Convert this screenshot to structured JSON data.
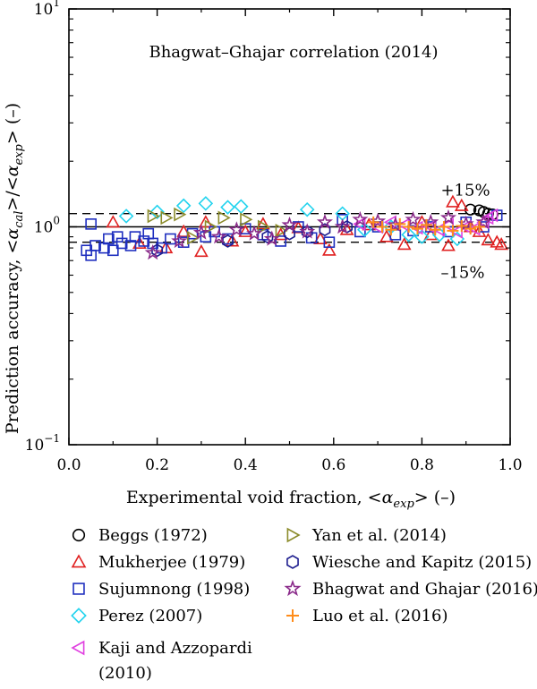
{
  "chart_data": {
    "type": "scatter",
    "title": "Bhagwat–Ghajar correlation (2014)",
    "xlabel": "Experimental void fraction, <α_exp> (–)",
    "ylabel": "Prediction accuracy, <α_cal>/<α_exp> (–)",
    "xlim": [
      0.0,
      1.0
    ],
    "ylim": [
      0.1,
      10
    ],
    "y_scale": "log",
    "x_ticks": [
      "0.0",
      "0.2",
      "0.4",
      "0.6",
      "0.8",
      "1.0"
    ],
    "y_ticks": [
      {
        "base": "10",
        "exp": "−1",
        "value": 0.1
      },
      {
        "base": "10",
        "exp": "0",
        "value": 1
      },
      {
        "base": "10",
        "exp": "1",
        "value": 10
      }
    ],
    "reference_lines": [
      {
        "label": "+15%",
        "value": 1.15,
        "style": "dashed"
      },
      {
        "label": "",
        "value": 1.0,
        "style": "solid"
      },
      {
        "label": "–15%",
        "value": 0.85,
        "style": "dashed"
      }
    ],
    "legend_placement": "below",
    "series": [
      {
        "name": "Beggs (1972)",
        "marker": "circle",
        "color": "#000000",
        "x": [
          0.91,
          0.93,
          0.94,
          0.95,
          0.96
        ],
        "y": [
          1.2,
          1.19,
          1.17,
          1.15,
          1.14
        ]
      },
      {
        "name": "Mukherjee (1979)",
        "marker": "triangle-up",
        "color": "#e02020",
        "x": [
          0.1,
          0.16,
          0.22,
          0.26,
          0.3,
          0.31,
          0.37,
          0.4,
          0.44,
          0.48,
          0.52,
          0.57,
          0.59,
          0.63,
          0.68,
          0.72,
          0.76,
          0.8,
          0.82,
          0.86,
          0.87,
          0.89,
          0.91,
          0.93,
          0.95,
          0.97,
          0.98
        ],
        "y": [
          1.05,
          0.84,
          0.8,
          0.95,
          0.77,
          1.05,
          0.86,
          0.95,
          1.03,
          0.92,
          0.99,
          0.88,
          0.78,
          0.97,
          1.02,
          0.9,
          0.83,
          1.05,
          0.92,
          0.82,
          1.3,
          1.25,
          1.0,
          0.95,
          0.87,
          0.85,
          0.83
        ]
      },
      {
        "name": "Sujumnong (1998)",
        "marker": "square",
        "color": "#1f2fbf",
        "x": [
          0.04,
          0.05,
          0.05,
          0.06,
          0.08,
          0.09,
          0.1,
          0.11,
          0.12,
          0.14,
          0.15,
          0.17,
          0.18,
          0.19,
          0.21,
          0.23,
          0.26,
          0.28,
          0.31,
          0.33,
          0.36,
          0.4,
          0.44,
          0.48,
          0.52,
          0.55,
          0.59,
          0.62,
          0.66,
          0.7,
          0.74,
          0.78,
          0.82,
          0.86,
          0.9,
          0.94,
          0.97
        ],
        "y": [
          0.78,
          1.03,
          0.74,
          0.82,
          0.8,
          0.88,
          0.78,
          0.9,
          0.84,
          0.82,
          0.9,
          0.86,
          0.93,
          0.84,
          0.8,
          0.88,
          0.85,
          0.93,
          0.9,
          0.95,
          0.88,
          0.98,
          0.92,
          0.86,
          1.0,
          0.89,
          0.85,
          1.08,
          0.95,
          1.0,
          0.92,
          0.96,
          1.0,
          0.95,
          1.05,
          1.0,
          1.13
        ]
      },
      {
        "name": "Perez (2007)",
        "marker": "diamond",
        "color": "#22d3ee",
        "x": [
          0.13,
          0.2,
          0.26,
          0.31,
          0.36,
          0.39,
          0.54,
          0.62,
          0.67,
          0.73,
          0.77,
          0.8,
          0.84,
          0.88
        ],
        "y": [
          1.12,
          1.17,
          1.25,
          1.28,
          1.23,
          1.24,
          1.2,
          1.15,
          0.97,
          1.0,
          0.92,
          0.9,
          0.92,
          0.88
        ]
      },
      {
        "name": "Kaji and Azzopardi (2010)",
        "marker": "triangle-left",
        "color": "#e040e0",
        "x": [
          0.66,
          0.7,
          0.73,
          0.76,
          0.79,
          0.82,
          0.84,
          0.86,
          0.88,
          0.9,
          0.92,
          0.94,
          0.95,
          0.96
        ],
        "y": [
          1.03,
          1.0,
          1.05,
          1.02,
          0.99,
          1.0,
          0.97,
          1.02,
          0.95,
          1.0,
          0.98,
          1.05,
          1.1,
          1.13
        ]
      },
      {
        "name": "Yan et al. (2014)",
        "marker": "triangle-right",
        "color": "#8b8b2a",
        "x": [
          0.19,
          0.22,
          0.25,
          0.28,
          0.32,
          0.35,
          0.4,
          0.44,
          0.48
        ],
        "y": [
          1.12,
          1.1,
          1.14,
          0.89,
          1.0,
          1.1,
          1.08,
          1.0,
          0.96
        ]
      },
      {
        "name": "Wiesche and Kapitz (2015)",
        "marker": "hexagon",
        "color": "#1e1e8f",
        "x": [
          0.2,
          0.36,
          0.45,
          0.5,
          0.54,
          0.58,
          0.63
        ],
        "y": [
          0.78,
          0.86,
          0.9,
          0.93,
          0.95,
          0.97,
          1.0
        ]
      },
      {
        "name": "Bhagwat and Ghajar (2016)",
        "marker": "star",
        "color": "#8a2a8a",
        "x": [
          0.19,
          0.25,
          0.3,
          0.34,
          0.38,
          0.42,
          0.46,
          0.5,
          0.54,
          0.58,
          0.62,
          0.66,
          0.7,
          0.74,
          0.78,
          0.82,
          0.86,
          0.9,
          0.94
        ],
        "y": [
          0.76,
          0.86,
          0.94,
          0.9,
          0.97,
          0.93,
          0.88,
          1.02,
          0.95,
          1.05,
          1.0,
          1.08,
          1.06,
          1.02,
          1.08,
          1.05,
          1.1,
          1.03,
          1.05
        ]
      },
      {
        "name": "Luo et al. (2016)",
        "marker": "plus",
        "color": "#ff8c1a",
        "x": [
          0.69,
          0.71,
          0.73,
          0.75,
          0.77,
          0.79,
          0.81,
          0.83,
          0.85,
          0.87,
          0.89,
          0.91,
          0.93
        ],
        "y": [
          1.05,
          1.0,
          0.97,
          1.03,
          1.0,
          0.98,
          1.02,
          0.97,
          1.0,
          0.96,
          1.01,
          0.98,
          1.0
        ]
      }
    ]
  }
}
